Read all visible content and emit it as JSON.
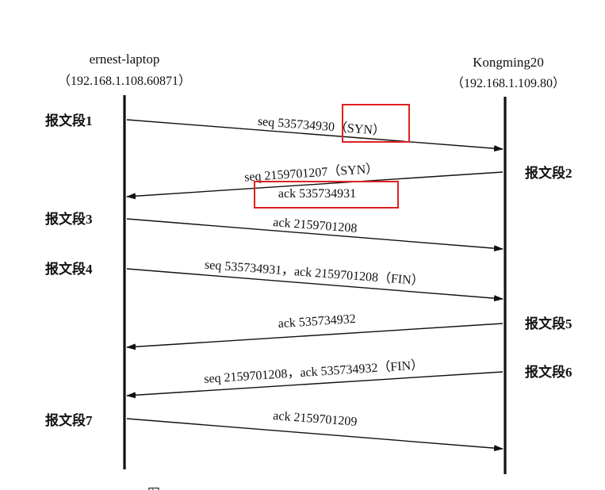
{
  "hosts": {
    "left": {
      "name": "ernest-laptop",
      "address": "（192.168.1.108.60871）"
    },
    "right": {
      "name": "Kongming20",
      "address": "（192.168.1.109.80）"
    }
  },
  "segments": [
    {
      "label": "报文段1",
      "direction": "left-to-right",
      "text": "seq 535734930（SYN）",
      "highlight": "SYN"
    },
    {
      "label": "报文段2",
      "direction": "right-to-left",
      "text": "seq 2159701207（SYN）",
      "text2": "ack 535734931",
      "highlight2": true
    },
    {
      "label": "报文段3",
      "direction": "left-to-right",
      "text": "ack 2159701208"
    },
    {
      "label": "报文段4",
      "direction": "left-to-right",
      "text": "seq 535734931，ack 2159701208（FIN）"
    },
    {
      "label": "报文段5",
      "direction": "right-to-left",
      "text": "ack 535734932"
    },
    {
      "label": "报文段6",
      "direction": "right-to-left",
      "text": "seq 2159701208，ack 535734932（FIN）"
    },
    {
      "label": "报文段7",
      "direction": "left-to-right",
      "text": "ack 2159701209"
    }
  ],
  "caption": "图",
  "colors": {
    "highlight": "#e02020",
    "ink": "#111111"
  }
}
